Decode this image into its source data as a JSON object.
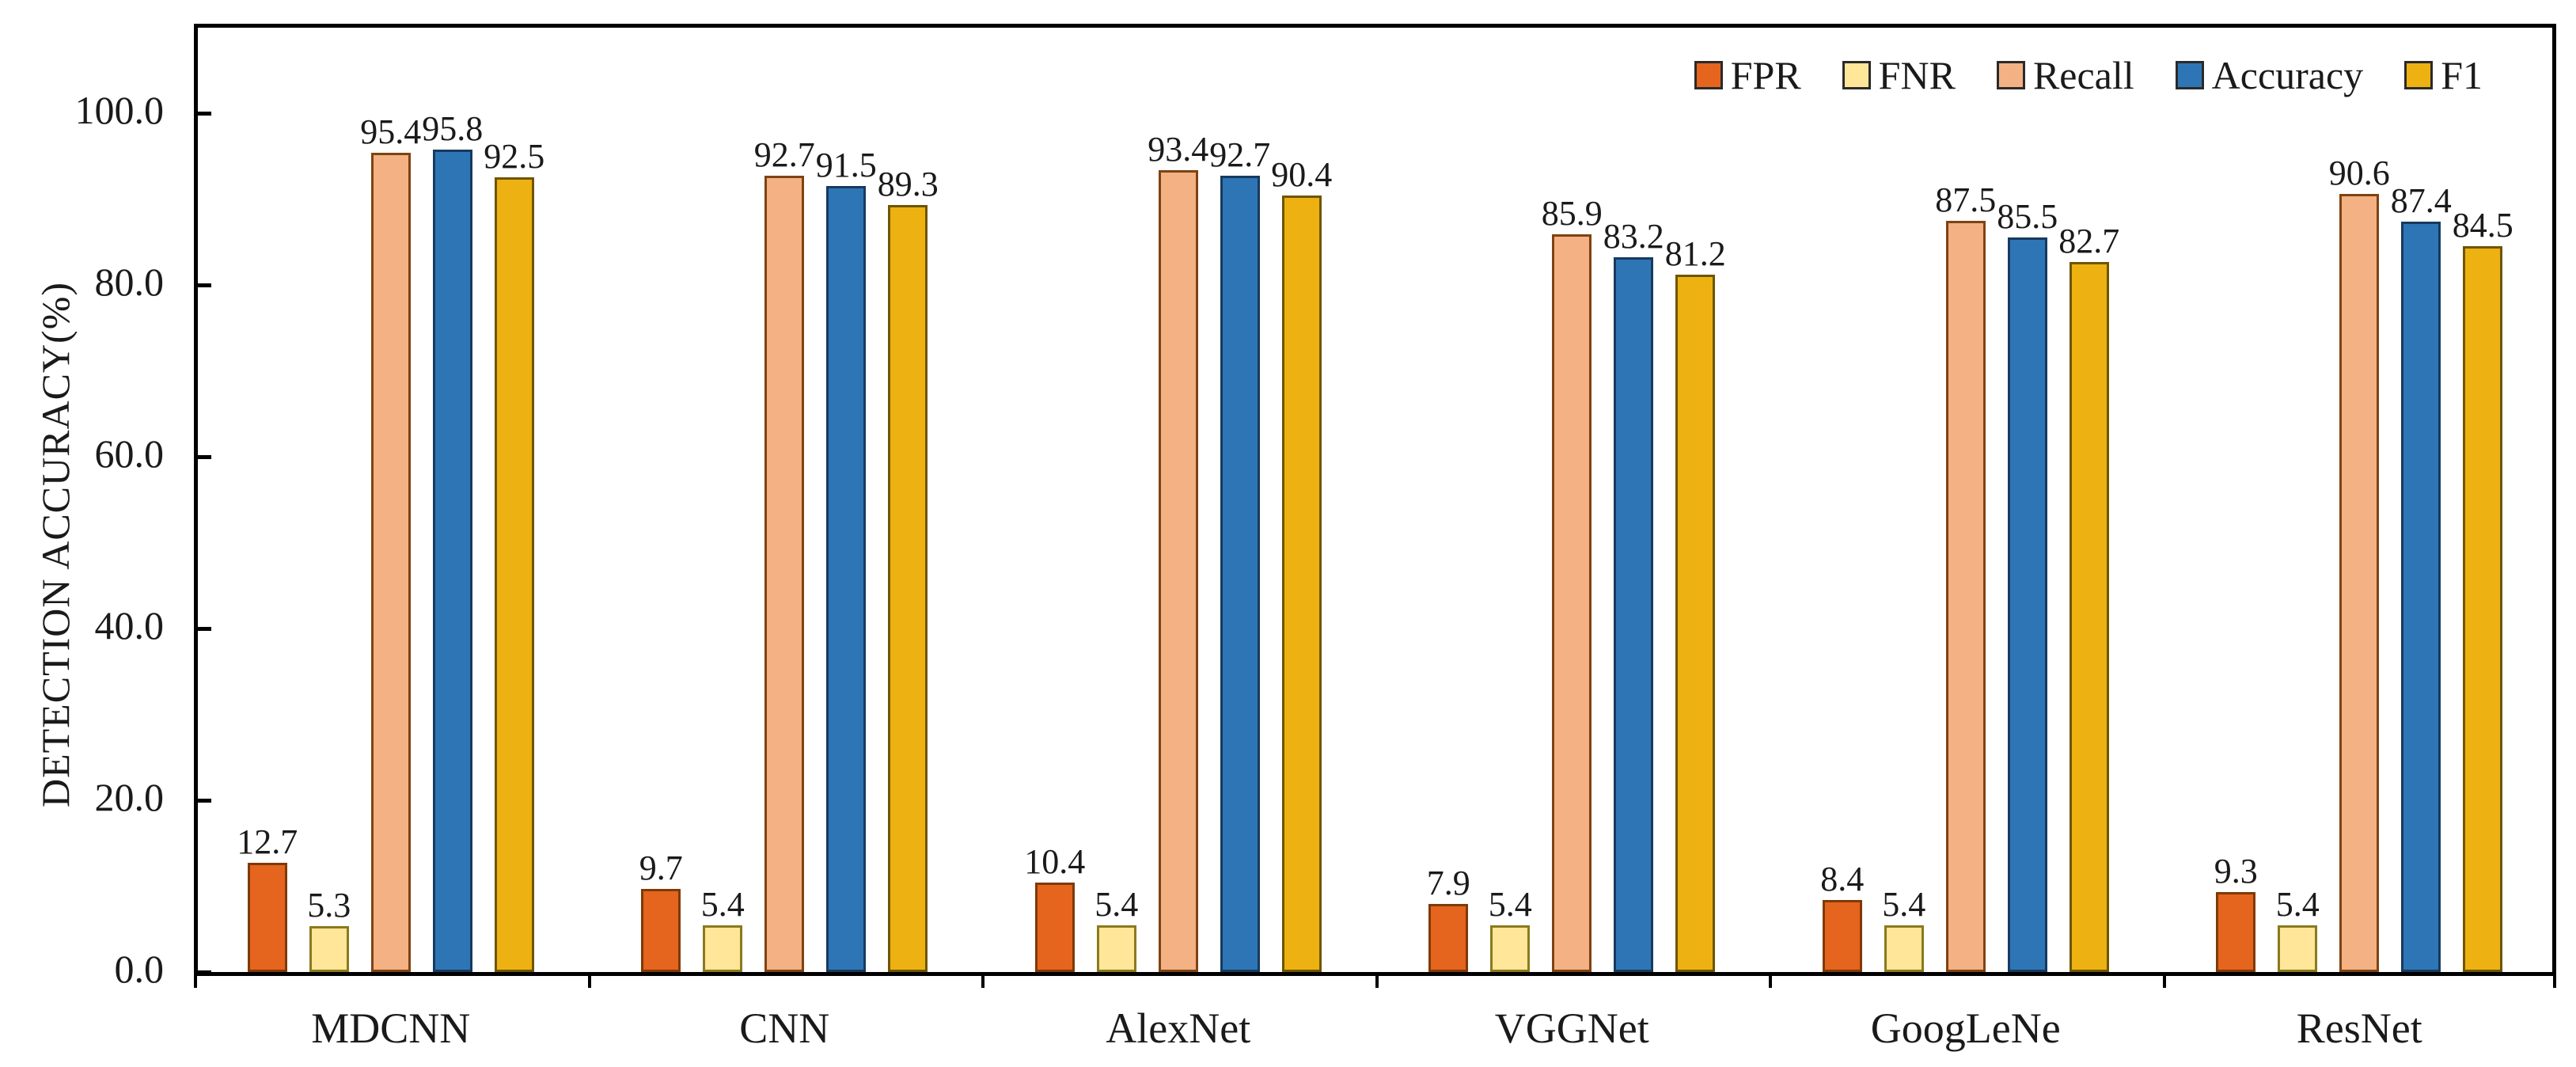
{
  "chart_data": {
    "type": "bar",
    "title": "",
    "xlabel": "",
    "ylabel": "DETECTION ACCURACY(%)",
    "ylim": [
      0,
      100
    ],
    "ytick_step": 20,
    "ytick_labels": [
      "0.0",
      "20.0",
      "40.0",
      "60.0",
      "80.0",
      "100.0"
    ],
    "grid": false,
    "legend_position": "top-right-inside",
    "categories": [
      "MDCNN",
      "CNN",
      "AlexNet",
      "VGGNet",
      "GoogLeNe",
      "ResNet"
    ],
    "series": [
      {
        "name": "FPR",
        "fill": "#E5641E",
        "edge": "#7E3A08",
        "values": [
          12.7,
          9.7,
          10.4,
          7.9,
          8.4,
          9.3
        ]
      },
      {
        "name": "FNR",
        "fill": "#FFE699",
        "edge": "#8a7a1e",
        "values": [
          5.3,
          5.4,
          5.4,
          5.4,
          5.4,
          5.4
        ]
      },
      {
        "name": "Recall",
        "fill": "#F4B183",
        "edge": "#7E4312",
        "values": [
          95.4,
          92.7,
          93.4,
          85.9,
          87.5,
          90.6
        ]
      },
      {
        "name": "Accuracy",
        "fill": "#2E75B6",
        "edge": "#173A5E",
        "values": [
          95.8,
          91.5,
          92.7,
          83.2,
          85.5,
          87.4
        ]
      },
      {
        "name": "F1",
        "fill": "#EDB211",
        "edge": "#6e5503",
        "values": [
          92.5,
          89.3,
          90.4,
          81.2,
          82.7,
          84.5
        ]
      }
    ],
    "value_label_decimals": 1
  }
}
